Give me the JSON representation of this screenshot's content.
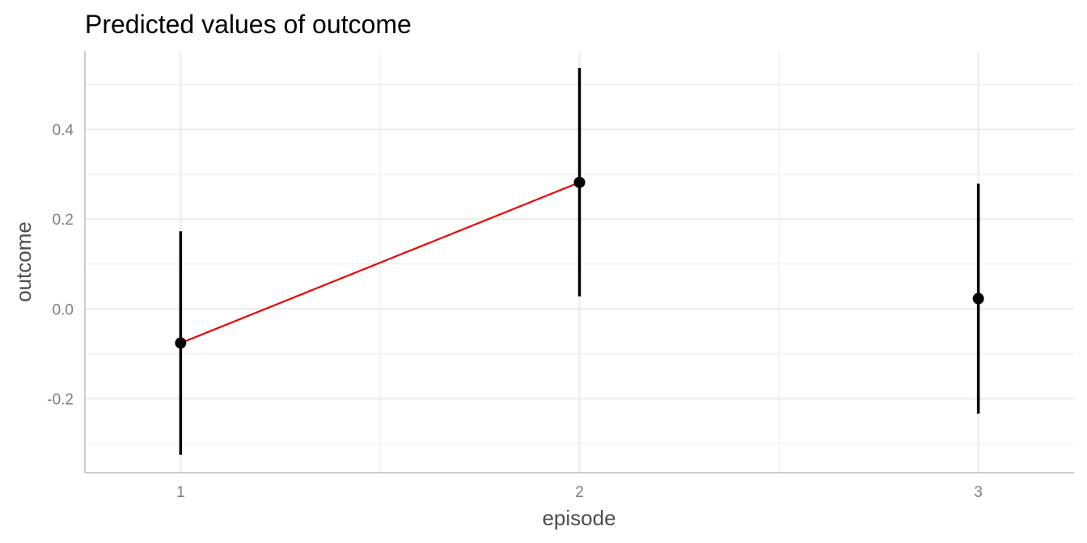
{
  "chart_data": {
    "type": "line",
    "title": "Predicted values of outcome",
    "xlabel": "episode",
    "ylabel": "outcome",
    "x_ticks": [
      "1",
      "2",
      "3"
    ],
    "y_ticks": [
      "-0.2",
      "0.0",
      "0.2",
      "0.4"
    ],
    "y_tick_values": [
      -0.2,
      0.0,
      0.2,
      0.4
    ],
    "xlim": [
      0.76,
      3.24
    ],
    "ylim": [
      -0.365,
      0.575
    ],
    "grid": true,
    "points": [
      {
        "x": 1,
        "y": -0.076,
        "ci_low": -0.325,
        "ci_high": 0.173
      },
      {
        "x": 2,
        "y": 0.282,
        "ci_low": 0.028,
        "ci_high": 0.537
      },
      {
        "x": 3,
        "y": 0.023,
        "ci_low": -0.233,
        "ci_high": 0.279
      }
    ],
    "connector": {
      "from_x": 1,
      "to_x": 2,
      "color": "#ee0000"
    },
    "colors": {
      "points": "#000000",
      "errorbars": "#000000",
      "connector": "#ee0000",
      "grid": "#ebebeb",
      "axis": "#cccccc"
    }
  }
}
